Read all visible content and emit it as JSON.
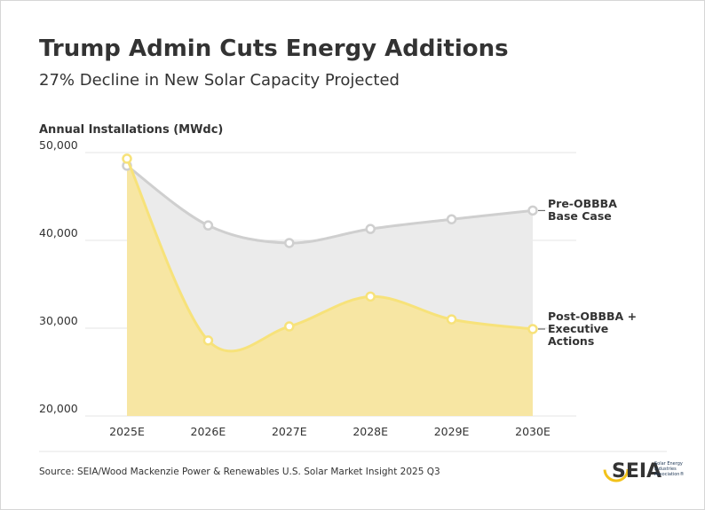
{
  "chart_data": {
    "type": "area",
    "title": "Trump Admin Cuts Energy Additions",
    "subtitle": "27% Decline in New Solar Capacity Projected",
    "y_label": "Annual Installations (MWdc)",
    "categories": [
      "2025E",
      "2026E",
      "2027E",
      "2028E",
      "2029E",
      "2030E"
    ],
    "series": [
      {
        "name": "Pre-OBBBA Base Case",
        "color": "#cfcfcf",
        "fill": "#ebebeb",
        "values": [
          48500,
          41700,
          39700,
          41300,
          42400,
          43400
        ]
      },
      {
        "name": "Post-OBBBA + Executive Actions",
        "color": "#f7e27a",
        "fill": "#f7e6a3",
        "values": [
          49300,
          28600,
          30200,
          33600,
          31000,
          29900
        ]
      }
    ],
    "ylim": [
      20000,
      50000
    ],
    "yticks": [
      {
        "value": 20000,
        "label": "20,000"
      },
      {
        "value": 30000,
        "label": "30,000"
      },
      {
        "value": 40000,
        "label": "40,000"
      },
      {
        "value": 50000,
        "label": "50,000"
      }
    ],
    "grid": true,
    "source": "Source: SEIA/Wood Mackenzie Power & Renewables U.S. Solar Market Insight 2025 Q3",
    "logo": {
      "name": "SEIA",
      "tagline": "Solar Energy Industries Association®"
    }
  }
}
